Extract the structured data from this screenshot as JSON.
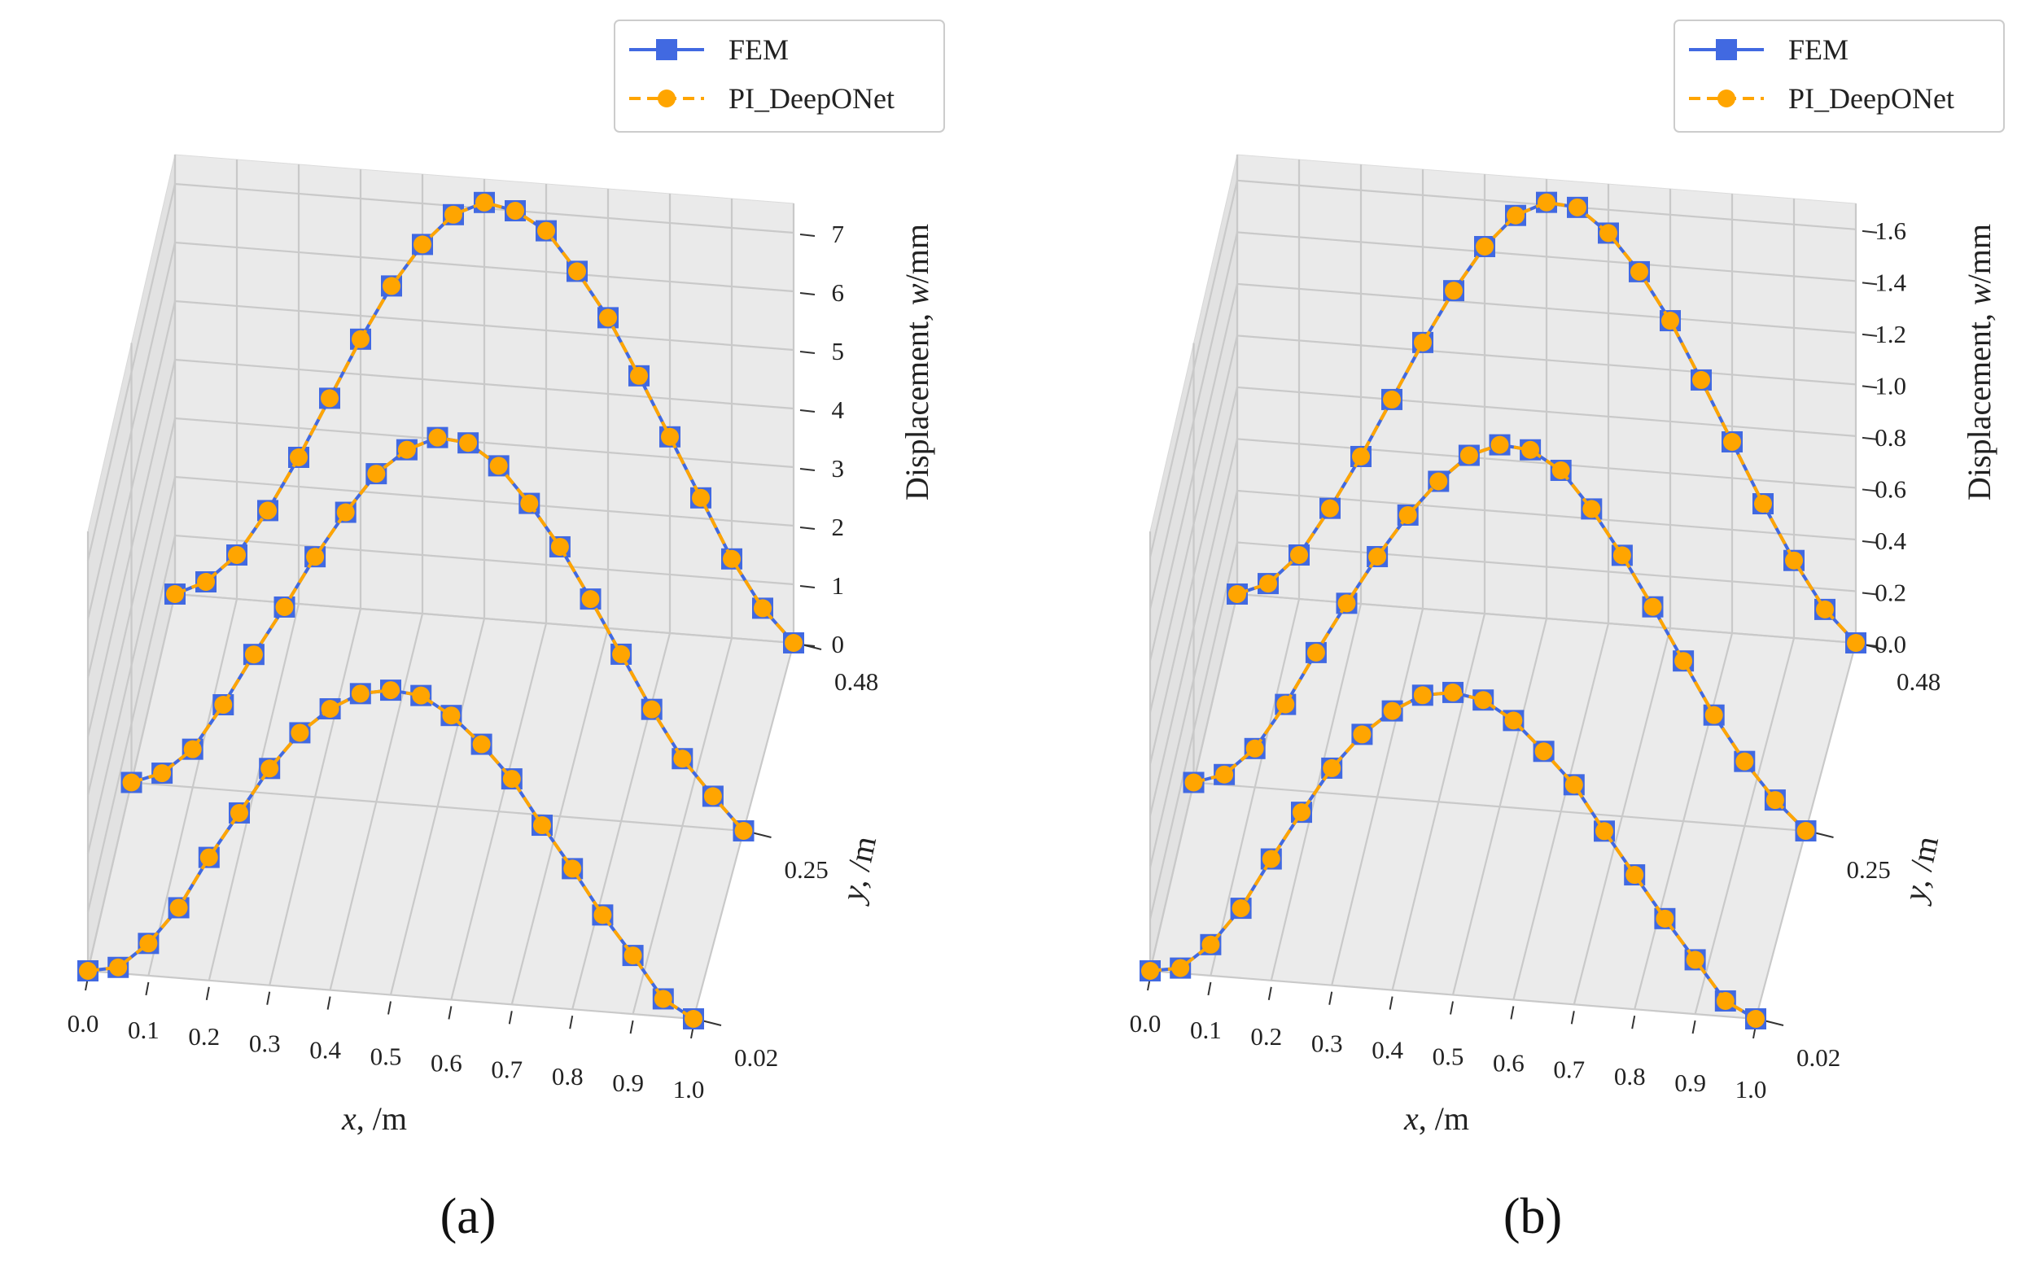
{
  "chart_data": [
    {
      "type": "line",
      "panel_label": "(a)",
      "legend": [
        {
          "name": "FEM",
          "marker": "square",
          "style": "solid"
        },
        {
          "name": "PI_DeepONet",
          "marker": "circle",
          "style": "dashed"
        }
      ],
      "x_label_main": "x",
      "x_label_unit": ", /m",
      "y_label_main": "y",
      "y_label_unit": ", /m",
      "z_label_text": "Displacement, ",
      "z_label_var": "w",
      "z_label_unit": "/mm",
      "x_ticks": [
        "0.0",
        "0.1",
        "0.2",
        "0.3",
        "0.4",
        "0.5",
        "0.6",
        "0.7",
        "0.8",
        "0.9",
        "1.0"
      ],
      "y_ticks": [
        "0.02",
        "0.25",
        "0.48"
      ],
      "z_ticks": [
        "0",
        "1",
        "2",
        "3",
        "4",
        "5",
        "6",
        "7"
      ],
      "zlim": [
        0,
        7.5
      ],
      "x": [
        0.0,
        0.05,
        0.1,
        0.15,
        0.2,
        0.25,
        0.3,
        0.35,
        0.4,
        0.45,
        0.5,
        0.55,
        0.6,
        0.65,
        0.7,
        0.75,
        0.8,
        0.85,
        0.9,
        0.95,
        1.0
      ],
      "series": [
        {
          "name": "y = 0.02",
          "y": 0.02,
          "fem": [
            0,
            0.1,
            0.55,
            1.2,
            2.1,
            2.9,
            3.7,
            4.35,
            4.8,
            5.1,
            5.2,
            5.15,
            4.85,
            4.4,
            3.85,
            3.1,
            2.4,
            1.65,
            1.0,
            0.3,
            0
          ],
          "pinn": [
            0,
            0.1,
            0.55,
            1.2,
            2.1,
            2.9,
            3.7,
            4.35,
            4.8,
            5.1,
            5.2,
            5.15,
            4.85,
            4.4,
            3.85,
            3.1,
            2.4,
            1.65,
            1.0,
            0.3,
            0
          ]
        },
        {
          "name": "y = 0.25",
          "y": 0.25,
          "fem": [
            0,
            0.2,
            0.65,
            1.45,
            2.35,
            3.2,
            4.1,
            4.9,
            5.6,
            6.05,
            6.3,
            6.25,
            5.9,
            5.3,
            4.6,
            3.75,
            2.85,
            1.95,
            1.15,
            0.55,
            0
          ],
          "pinn": [
            0,
            0.2,
            0.65,
            1.45,
            2.35,
            3.2,
            4.1,
            4.9,
            5.6,
            6.05,
            6.3,
            6.25,
            5.9,
            5.3,
            4.6,
            3.75,
            2.85,
            1.95,
            1.15,
            0.55,
            0
          ]
        },
        {
          "name": "y = 0.48",
          "y": 0.48,
          "fem": [
            0,
            0.25,
            0.75,
            1.55,
            2.5,
            3.55,
            4.6,
            5.55,
            6.3,
            6.85,
            7.1,
            7.0,
            6.7,
            6.05,
            5.3,
            4.35,
            3.35,
            2.35,
            1.35,
            0.55,
            0
          ],
          "pinn": [
            0,
            0.25,
            0.75,
            1.55,
            2.5,
            3.55,
            4.6,
            5.55,
            6.3,
            6.85,
            7.1,
            7.0,
            6.7,
            6.05,
            5.3,
            4.35,
            3.35,
            2.35,
            1.35,
            0.55,
            0
          ]
        }
      ]
    },
    {
      "type": "line",
      "panel_label": "(b)",
      "legend": [
        {
          "name": "FEM",
          "marker": "square",
          "style": "solid"
        },
        {
          "name": "PI_DeepONet",
          "marker": "circle",
          "style": "dashed"
        }
      ],
      "x_label_main": "x",
      "x_label_unit": ", /m",
      "y_label_main": "y",
      "y_label_unit": ", /m",
      "z_label_text": "Displacement, ",
      "z_label_var": "w",
      "z_label_unit": "/mm",
      "x_ticks": [
        "0.0",
        "0.1",
        "0.2",
        "0.3",
        "0.4",
        "0.5",
        "0.6",
        "0.7",
        "0.8",
        "0.9",
        "1.0"
      ],
      "y_ticks": [
        "0.02",
        "0.25",
        "0.48"
      ],
      "z_ticks": [
        "0.0",
        "0.2",
        "0.4",
        "0.6",
        "0.8",
        "1.0",
        "1.2",
        "1.4",
        "1.6"
      ],
      "zlim": [
        0,
        1.7
      ],
      "x": [
        0.0,
        0.05,
        0.1,
        0.15,
        0.2,
        0.25,
        0.3,
        0.35,
        0.4,
        0.45,
        0.5,
        0.55,
        0.6,
        0.65,
        0.7,
        0.75,
        0.8,
        0.85,
        0.9,
        0.95,
        1.0
      ],
      "series": [
        {
          "name": "y = 0.02",
          "y": 0.02,
          "fem": [
            0,
            0.02,
            0.12,
            0.27,
            0.47,
            0.66,
            0.84,
            0.98,
            1.08,
            1.15,
            1.17,
            1.15,
            1.08,
            0.97,
            0.85,
            0.68,
            0.52,
            0.36,
            0.21,
            0.06,
            0
          ],
          "pinn": [
            0,
            0.02,
            0.12,
            0.27,
            0.47,
            0.66,
            0.84,
            0.98,
            1.08,
            1.15,
            1.17,
            1.15,
            1.08,
            0.97,
            0.85,
            0.68,
            0.52,
            0.36,
            0.21,
            0.06,
            0
          ]
        },
        {
          "name": "y = 0.25",
          "y": 0.25,
          "fem": [
            0,
            0.04,
            0.15,
            0.33,
            0.54,
            0.74,
            0.93,
            1.1,
            1.24,
            1.35,
            1.4,
            1.39,
            1.32,
            1.18,
            1.01,
            0.82,
            0.62,
            0.42,
            0.25,
            0.11,
            0
          ],
          "pinn": [
            0,
            0.04,
            0.15,
            0.33,
            0.54,
            0.74,
            0.93,
            1.1,
            1.24,
            1.35,
            1.4,
            1.39,
            1.32,
            1.18,
            1.01,
            0.82,
            0.62,
            0.42,
            0.25,
            0.11,
            0
          ]
        },
        {
          "name": "y = 0.48",
          "y": 0.48,
          "fem": [
            0,
            0.05,
            0.17,
            0.36,
            0.57,
            0.8,
            1.03,
            1.24,
            1.42,
            1.55,
            1.61,
            1.6,
            1.51,
            1.37,
            1.19,
            0.97,
            0.74,
            0.51,
            0.3,
            0.12,
            0
          ],
          "pinn": [
            0,
            0.05,
            0.17,
            0.36,
            0.57,
            0.8,
            1.03,
            1.24,
            1.42,
            1.55,
            1.61,
            1.6,
            1.51,
            1.37,
            1.19,
            0.97,
            0.74,
            0.51,
            0.3,
            0.12,
            0
          ]
        }
      ]
    }
  ]
}
